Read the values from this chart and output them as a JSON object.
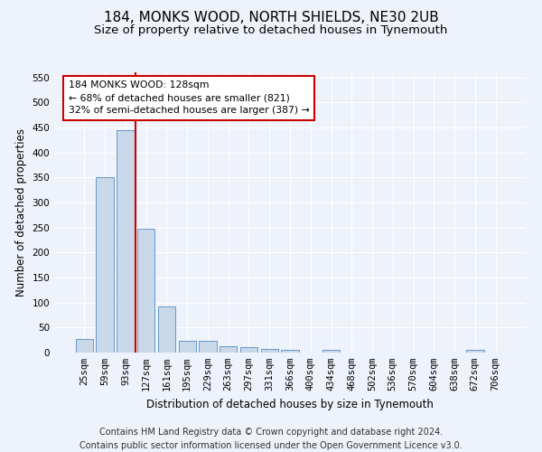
{
  "title": "184, MONKS WOOD, NORTH SHIELDS, NE30 2UB",
  "subtitle": "Size of property relative to detached houses in Tynemouth",
  "xlabel": "Distribution of detached houses by size in Tynemouth",
  "ylabel": "Number of detached properties",
  "categories": [
    "25sqm",
    "59sqm",
    "93sqm",
    "127sqm",
    "161sqm",
    "195sqm",
    "229sqm",
    "263sqm",
    "297sqm",
    "331sqm",
    "366sqm",
    "400sqm",
    "434sqm",
    "468sqm",
    "502sqm",
    "536sqm",
    "570sqm",
    "604sqm",
    "638sqm",
    "672sqm",
    "706sqm"
  ],
  "values": [
    27,
    350,
    445,
    247,
    92,
    24,
    24,
    13,
    10,
    7,
    5,
    0,
    5,
    0,
    0,
    0,
    0,
    0,
    0,
    5,
    0
  ],
  "bar_color": "#c8d8e8",
  "bar_edge_color": "#6699cc",
  "property_line_color": "#cc0000",
  "annotation_text": "184 MONKS WOOD: 128sqm\n← 68% of detached houses are smaller (821)\n32% of semi-detached houses are larger (387) →",
  "annotation_box_color": "#ffffff",
  "annotation_box_edge": "#cc0000",
  "footer_line1": "Contains HM Land Registry data © Crown copyright and database right 2024.",
  "footer_line2": "Contains public sector information licensed under the Open Government Licence v3.0.",
  "ylim": [
    0,
    560
  ],
  "yticks": [
    0,
    50,
    100,
    150,
    200,
    250,
    300,
    350,
    400,
    450,
    500,
    550
  ],
  "background_color": "#eef2fb",
  "grid_color": "#ffffff",
  "title_fontsize": 11,
  "subtitle_fontsize": 9.5,
  "axis_label_fontsize": 8.5,
  "tick_fontsize": 7.5,
  "footer_fontsize": 7
}
